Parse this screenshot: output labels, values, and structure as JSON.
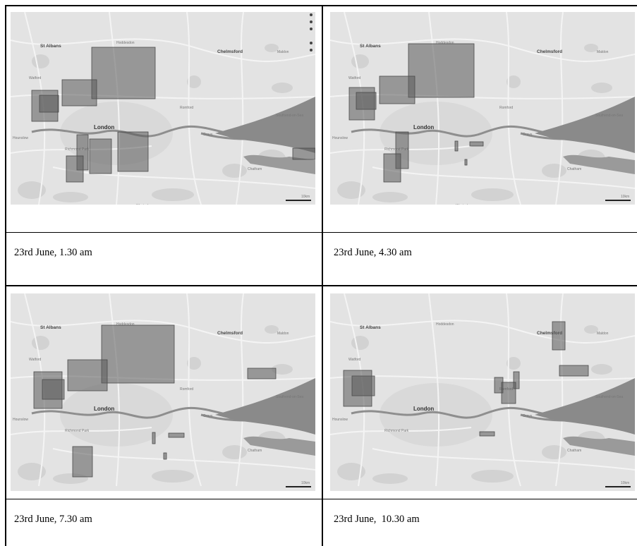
{
  "panels": [
    {
      "caption": "23rd June, 1.30 am",
      "scale_label": "10km",
      "places": [
        "St Albans",
        "Hoddesdon",
        "Chelmsford",
        "Maldon",
        "Watford",
        "Romford",
        "London",
        "Southend-on-Sea",
        "Hounslow",
        "Richmond Park",
        "Grays",
        "Chatham",
        "Westerham"
      ],
      "regions": 10
    },
    {
      "caption": "23rd June, 4.30 am",
      "scale_label": "10km",
      "places": [
        "St Albans",
        "Hoddesdon",
        "Chelmsford",
        "Maldon",
        "Watford",
        "Romford",
        "London",
        "Southend-on-Sea",
        "Hounslow",
        "Richmond Park",
        "Grays",
        "Chatham",
        "Westerham"
      ],
      "regions": 8
    },
    {
      "caption": "23rd June, 7.30 am",
      "scale_label": "10km",
      "places": [
        "St Albans",
        "Hoddesdon",
        "Chelmsford",
        "Maldon",
        "Watford",
        "Romford",
        "London",
        "Southend-on-Sea",
        "Hounslow",
        "Richmond Park",
        "Grays",
        "Chatham"
      ],
      "regions": 9
    },
    {
      "caption": "23rd June,  10.30 am",
      "scale_label": "10km",
      "places": [
        "St Albans",
        "Hoddesdon",
        "Chelmsford",
        "Maldon",
        "Watford",
        "Romford",
        "London",
        "Southend-on-Sea",
        "Hounslow",
        "Richmond Park",
        "Grays",
        "Chatham"
      ],
      "regions": 9
    }
  ]
}
